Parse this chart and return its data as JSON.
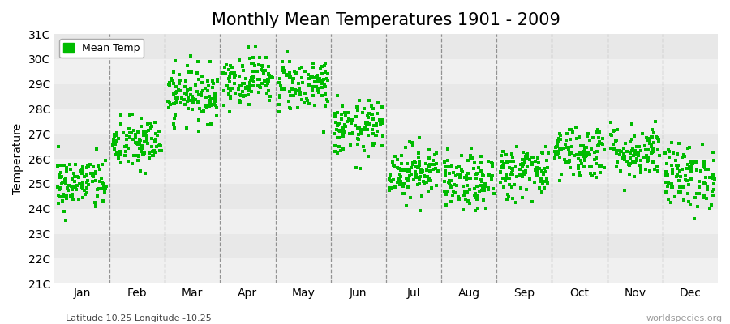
{
  "title": "Monthly Mean Temperatures 1901 - 2009",
  "ylabel": "Temperature",
  "lat_lon_label": "Latitude 10.25 Longitude -10.25",
  "watermark": "worldspecies.org",
  "ylim": [
    21,
    31
  ],
  "ytick_labels": [
    "21C",
    "22C",
    "23C",
    "24C",
    "25C",
    "26C",
    "27C",
    "28C",
    "29C",
    "30C",
    "31C"
  ],
  "ytick_values": [
    21,
    22,
    23,
    24,
    25,
    26,
    27,
    28,
    29,
    30,
    31
  ],
  "months": [
    "Jan",
    "Feb",
    "Mar",
    "Apr",
    "May",
    "Jun",
    "Jul",
    "Aug",
    "Sep",
    "Oct",
    "Nov",
    "Dec"
  ],
  "monthly_mean": [
    25.0,
    26.6,
    28.6,
    29.2,
    29.0,
    27.2,
    25.5,
    25.0,
    25.5,
    26.3,
    26.3,
    25.3
  ],
  "monthly_std": [
    0.55,
    0.55,
    0.55,
    0.5,
    0.55,
    0.55,
    0.55,
    0.55,
    0.55,
    0.55,
    0.55,
    0.65
  ],
  "n_years": 109,
  "dot_color": "#00BB00",
  "dot_size": 7,
  "background_color": "#ffffff",
  "band_colors_even": "#e8e8e8",
  "band_colors_odd": "#f0f0f0",
  "grid_color": "#555555",
  "title_fontsize": 15,
  "axis_fontsize": 10,
  "legend_label": "Mean Temp",
  "seed": 42
}
